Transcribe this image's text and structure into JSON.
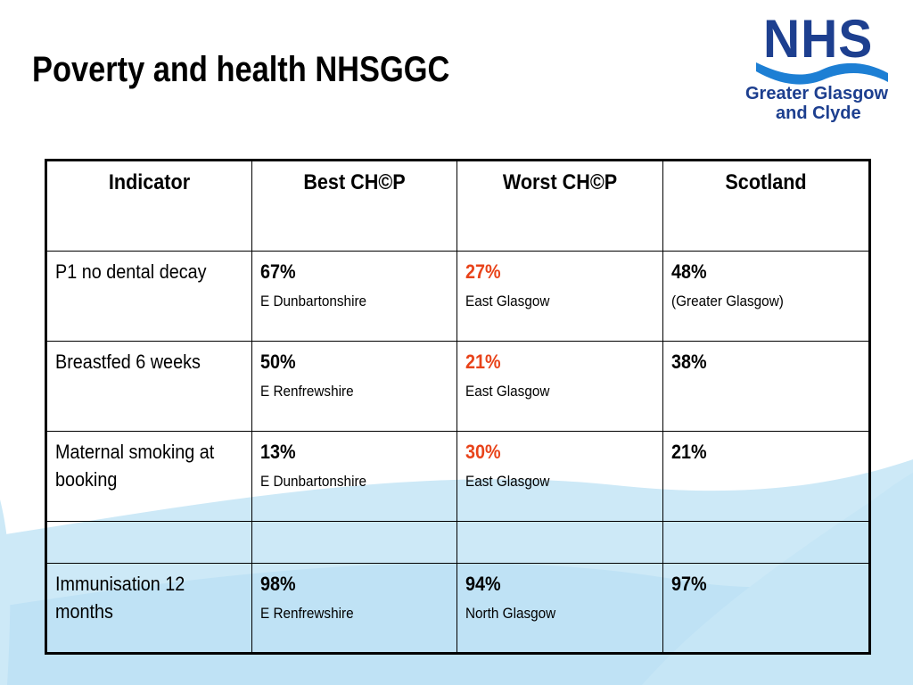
{
  "title": "Poverty and health NHSGGC",
  "logo": {
    "nhs": "NHS",
    "line1": "Greater Glasgow",
    "line2": "and Clyde"
  },
  "colors": {
    "worst_value": "#e8431a",
    "logo_blue": "#1d3f8f",
    "wave_blue": "#cde9f7"
  },
  "table": {
    "headers": [
      "Indicator",
      "Best CH©P",
      "Worst CH©P",
      "Scotland"
    ],
    "rows": [
      {
        "indicator": "P1 no dental decay",
        "best_value": "67%",
        "best_area": "E Dunbartonshire",
        "worst_value": "27%",
        "worst_area": "East Glasgow",
        "scotland_value": "48%",
        "scotland_note": "(Greater Glasgow)"
      },
      {
        "indicator": "Breastfed 6 weeks",
        "best_value": "50%",
        "best_area": "E Renfrewshire",
        "worst_value": "21%",
        "worst_area": "East Glasgow",
        "scotland_value": "38%",
        "scotland_note": ""
      },
      {
        "indicator": "Maternal smoking at booking",
        "best_value": "13%",
        "best_area": "E Dunbartonshire",
        "worst_value": "30%",
        "worst_area": "East Glasgow",
        "scotland_value": "21%",
        "scotland_note": ""
      },
      {
        "indicator": "",
        "best_value": "",
        "best_area": "",
        "worst_value": "",
        "worst_area": "",
        "scotland_value": "",
        "scotland_note": ""
      },
      {
        "indicator": "Immunisation 12 months",
        "best_value": "98%",
        "best_area": "E Renfrewshire",
        "worst_value": "94%",
        "worst_area": "North Glasgow",
        "scotland_value": "97%",
        "scotland_note": ""
      }
    ]
  }
}
